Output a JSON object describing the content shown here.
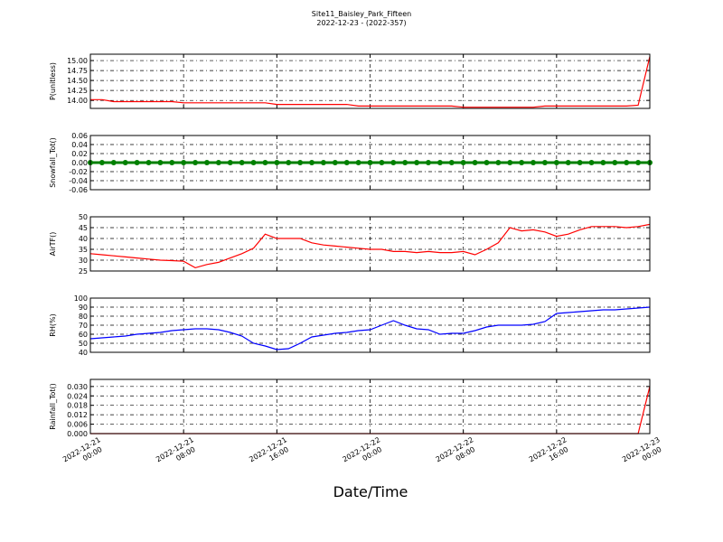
{
  "title": "Site11_Baisley_Park_Fifteen",
  "subtitle": "2022-12-23 - (2022-357)",
  "x_axis": {
    "label": "Date/Time",
    "xlim": [
      "2022-12-21 00:00",
      "2022-12-23 00:00"
    ],
    "xticks": [
      "2022-12-21 00:00",
      "2022-12-21 08:00",
      "2022-12-21 16:00",
      "2022-12-22 00:00",
      "2022-12-22 08:00",
      "2022-12-22 16:00",
      "2022-12-23 00:00"
    ],
    "x": [
      "2022-12-21 00:00",
      "2022-12-21 01:00",
      "2022-12-21 02:00",
      "2022-12-21 03:00",
      "2022-12-21 04:00",
      "2022-12-21 05:00",
      "2022-12-21 06:00",
      "2022-12-21 07:00",
      "2022-12-21 08:00",
      "2022-12-21 09:00",
      "2022-12-21 10:00",
      "2022-12-21 11:00",
      "2022-12-21 12:00",
      "2022-12-21 13:00",
      "2022-12-21 14:00",
      "2022-12-21 15:00",
      "2022-12-21 16:00",
      "2022-12-21 17:00",
      "2022-12-21 18:00",
      "2022-12-21 19:00",
      "2022-12-21 20:00",
      "2022-12-21 21:00",
      "2022-12-21 22:00",
      "2022-12-21 23:00",
      "2022-12-22 00:00",
      "2022-12-22 01:00",
      "2022-12-22 02:00",
      "2022-12-22 03:00",
      "2022-12-22 04:00",
      "2022-12-22 05:00",
      "2022-12-22 06:00",
      "2022-12-22 07:00",
      "2022-12-22 08:00",
      "2022-12-22 09:00",
      "2022-12-22 10:00",
      "2022-12-22 11:00",
      "2022-12-22 12:00",
      "2022-12-22 13:00",
      "2022-12-22 14:00",
      "2022-12-22 15:00",
      "2022-12-22 16:00",
      "2022-12-22 17:00",
      "2022-12-22 18:00",
      "2022-12-22 19:00",
      "2022-12-22 20:00",
      "2022-12-22 21:00",
      "2022-12-22 22:00",
      "2022-12-22 23:00",
      "2022-12-23 00:00"
    ]
  },
  "chart_data": [
    {
      "type": "line",
      "y_label": "P(unitless)",
      "color": "#ff0000",
      "grid": true,
      "ylim": [
        13.8,
        15.16
      ],
      "yticks": [
        {
          "value": 14.0,
          "label": "14.00"
        },
        14.25,
        {
          "value": 14.5,
          "label": "14.50"
        },
        14.75,
        {
          "value": 15.0,
          "label": "15.00"
        }
      ],
      "values": [
        14.02,
        14.02,
        13.97,
        13.97,
        13.97,
        13.97,
        13.97,
        13.97,
        13.94,
        13.94,
        13.94,
        13.94,
        13.94,
        13.94,
        13.94,
        13.94,
        13.9,
        13.9,
        13.9,
        13.9,
        13.9,
        13.9,
        13.9,
        13.86,
        13.86,
        13.86,
        13.86,
        13.86,
        13.86,
        13.86,
        13.86,
        13.86,
        13.83,
        13.83,
        13.83,
        13.83,
        13.83,
        13.83,
        13.83,
        13.86,
        13.86,
        13.86,
        13.86,
        13.86,
        13.86,
        13.86,
        13.86,
        13.88,
        15.1
      ]
    },
    {
      "type": "marker-line",
      "y_label": "Snowfall_Tot()",
      "color": "#008000",
      "grid": true,
      "ylim": [
        -0.06,
        0.06
      ],
      "yticks": [
        -0.06,
        -0.04,
        -0.02,
        {
          "value": 0,
          "label": "0.00"
        },
        0.02,
        0.04,
        0.06
      ],
      "values": [
        0,
        0,
        0,
        0,
        0,
        0,
        0,
        0,
        0,
        0,
        0,
        0,
        0,
        0,
        0,
        0,
        0,
        0,
        0,
        0,
        0,
        0,
        0,
        0,
        0,
        0,
        0,
        0,
        0,
        0,
        0,
        0,
        0,
        0,
        0,
        0,
        0,
        0,
        0,
        0,
        0,
        0,
        0,
        0,
        0,
        0,
        0,
        0,
        0
      ]
    },
    {
      "type": "line",
      "y_label": "AirTF()",
      "color": "#ff0000",
      "grid": true,
      "ylim": [
        25,
        50
      ],
      "yticks": [
        25,
        30,
        35,
        40,
        45,
        50
      ],
      "values": [
        33,
        32.5,
        32,
        31.5,
        31,
        30.5,
        30,
        29.8,
        29.5,
        26.5,
        28,
        29,
        31,
        33,
        35.5,
        42,
        40,
        40,
        40,
        38,
        37,
        36.5,
        36,
        35.5,
        35,
        35,
        34,
        34,
        33.5,
        34,
        33.5,
        33.5,
        34,
        32.5,
        35,
        38,
        45,
        43.5,
        44,
        43,
        41,
        42,
        44,
        45.5,
        45.5,
        45.5,
        45,
        45.5,
        46.5
      ]
    },
    {
      "type": "line",
      "y_label": "RH(%)",
      "color": "#0000ff",
      "grid": true,
      "ylim": [
        40,
        100
      ],
      "yticks": [
        40,
        50,
        60,
        70,
        80,
        90,
        100
      ],
      "values": [
        55,
        56,
        57,
        58,
        60,
        61,
        62,
        64,
        65,
        66,
        66,
        65,
        62,
        58,
        50,
        47,
        43,
        44,
        50,
        57,
        59,
        61,
        62,
        64,
        65,
        70,
        75,
        70,
        66,
        65,
        60,
        61,
        61,
        64,
        68,
        70,
        70,
        70,
        71,
        74,
        83,
        84,
        85,
        86,
        87,
        87,
        88,
        89,
        90
      ]
    },
    {
      "type": "line",
      "y_label": "Rainfall_Tot()",
      "color": "#ff0000",
      "grid": true,
      "ylim": [
        0,
        0.0345
      ],
      "yticks": [
        {
          "value": 0,
          "label": "0.000"
        },
        0.006,
        0.012,
        0.018,
        0.024,
        {
          "value": 0.03,
          "label": "0.030"
        }
      ],
      "values": [
        0,
        0,
        0,
        0,
        0,
        0,
        0,
        0,
        0,
        0,
        0,
        0,
        0,
        0,
        0,
        0,
        0,
        0,
        0,
        0,
        0,
        0,
        0,
        0,
        0,
        0,
        0,
        0,
        0,
        0,
        0,
        0,
        0,
        0,
        0,
        0,
        0,
        0,
        0,
        0,
        0,
        0,
        0,
        0,
        0,
        0,
        0,
        0,
        0.03
      ]
    }
  ]
}
